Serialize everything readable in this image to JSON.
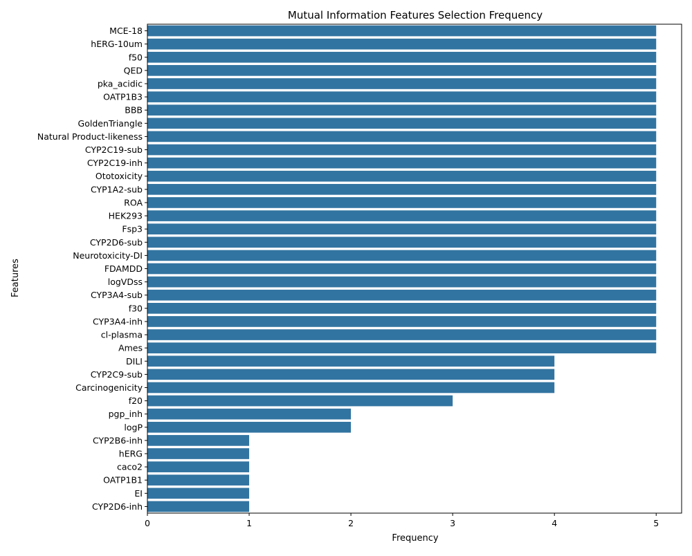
{
  "chart_data": {
    "type": "bar",
    "orientation": "horizontal",
    "title": "Mutual Information Features Selection Frequency",
    "xlabel": "Frequency",
    "ylabel": "Features",
    "xlim": [
      0,
      5.25
    ],
    "xticks": [
      0,
      1,
      2,
      3,
      4,
      5
    ],
    "grid": false,
    "bar_color": "#3274a1",
    "categories": [
      "MCE-18",
      "hERG-10um",
      "f50",
      "QED",
      "pka_acidic",
      "OATP1B3",
      "BBB",
      "GoldenTriangle",
      "Natural Product-likeness",
      "CYP2C19-sub",
      "CYP2C19-inh",
      "Ototoxicity",
      "CYP1A2-sub",
      "ROA",
      "HEK293",
      "Fsp3",
      "CYP2D6-sub",
      "Neurotoxicity-DI",
      "FDAMDD",
      "logVDss",
      "CYP3A4-sub",
      "f30",
      "CYP3A4-inh",
      "cl-plasma",
      "Ames",
      "DILI",
      "CYP2C9-sub",
      "Carcinogenicity",
      "f20",
      "pgp_inh",
      "logP",
      "CYP2B6-inh",
      "hERG",
      "caco2",
      "OATP1B1",
      "EI",
      "CYP2D6-inh"
    ],
    "values": [
      5,
      5,
      5,
      5,
      5,
      5,
      5,
      5,
      5,
      5,
      5,
      5,
      5,
      5,
      5,
      5,
      5,
      5,
      5,
      5,
      5,
      5,
      5,
      5,
      5,
      4,
      4,
      4,
      3,
      2,
      2,
      1,
      1,
      1,
      1,
      1,
      1
    ]
  }
}
